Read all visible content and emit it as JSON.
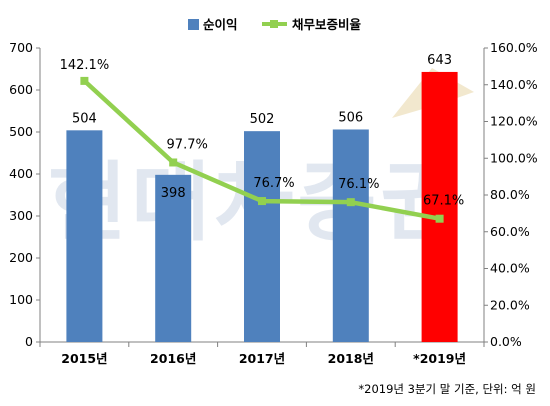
{
  "chart_data": {
    "type": "bar",
    "categories": [
      "2015년",
      "2016년",
      "2017년",
      "2018년",
      "*2019년"
    ],
    "series": [
      {
        "name": "순이익",
        "kind": "bar",
        "axis": "left",
        "values": [
          504,
          398,
          502,
          506,
          643
        ],
        "labels": [
          "504",
          "398",
          "502",
          "506",
          "643"
        ]
      },
      {
        "name": "채무보증비율",
        "kind": "line",
        "axis": "right",
        "values": [
          142.1,
          97.7,
          76.7,
          76.1,
          67.1
        ],
        "labels": [
          "142.1%",
          "97.7%",
          "76.7%",
          "76.1%",
          "67.1%"
        ]
      }
    ],
    "y_left": {
      "min": 0,
      "max": 700,
      "ticks": [
        "0",
        "100",
        "200",
        "300",
        "400",
        "500",
        "600",
        "700"
      ]
    },
    "y_right": {
      "min": 0,
      "max": 160,
      "ticks": [
        "0.0%",
        "20.0%",
        "40.0%",
        "60.0%",
        "80.0%",
        "100.0%",
        "120.0%",
        "140.0%",
        "160.0%"
      ]
    },
    "legend_position": "top-center",
    "grid": false,
    "colors": {
      "bar": "#4f81bd",
      "bar_highlight": "#ff0000",
      "line": "#92d050"
    },
    "highlight_index": 4,
    "watermark": "현대차증권",
    "footnote": "*2019년 3분기 말 기준, 단위: 억 원"
  }
}
